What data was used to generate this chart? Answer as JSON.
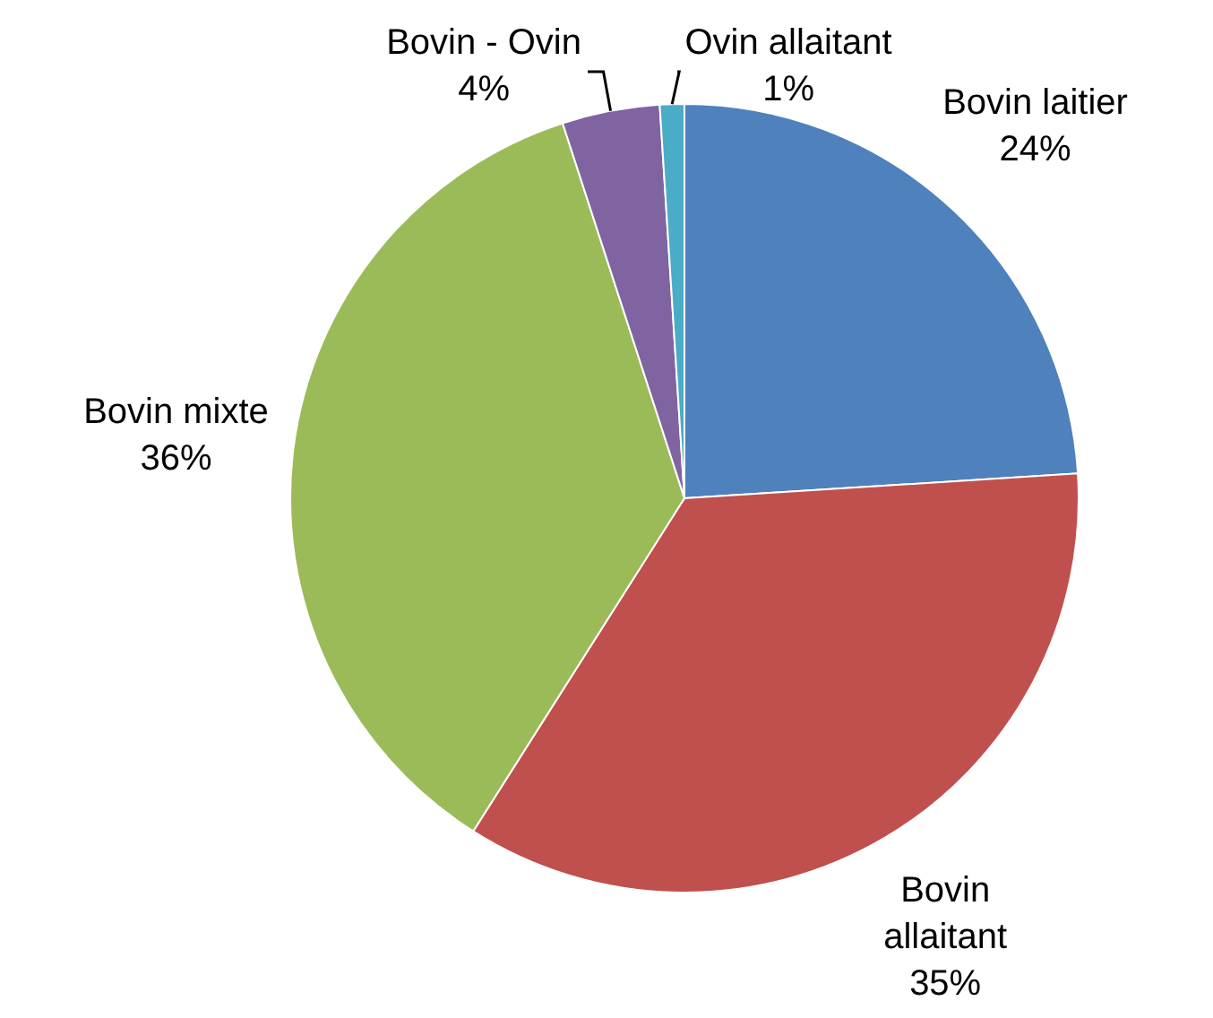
{
  "chart_data": {
    "type": "pie",
    "categories": [
      "Bovin laitier",
      "Bovin allaitant",
      "Bovin mixte",
      "Bovin - Ovin",
      "Ovin allaitant"
    ],
    "values": [
      24,
      35,
      36,
      4,
      1
    ],
    "colors": [
      "#4f81bd",
      "#c0504d",
      "#9bbb59",
      "#8064a2",
      "#4bacc6"
    ],
    "value_labels": [
      "24%",
      "35%",
      "36%",
      "4%",
      "1%"
    ]
  }
}
